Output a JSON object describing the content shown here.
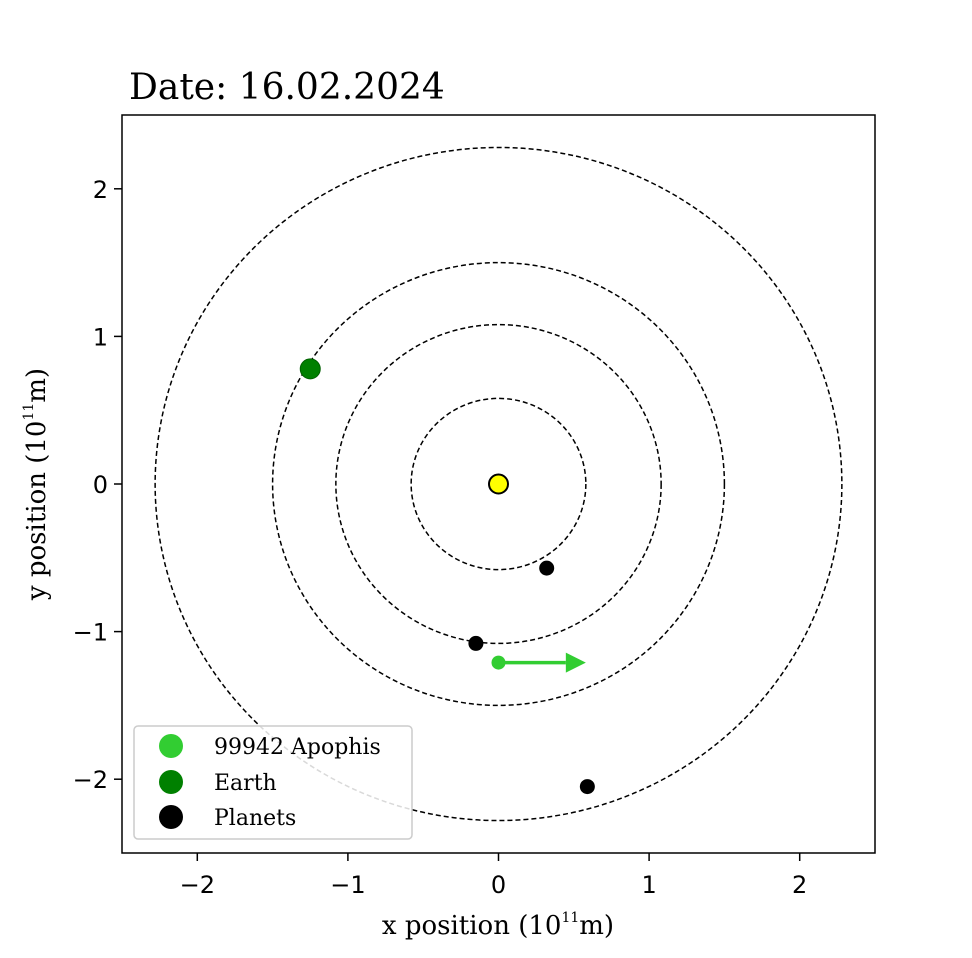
{
  "chart_data": {
    "type": "scatter",
    "title": "Date: 16.02.2024",
    "xlabel": {
      "prefix": "x position (10",
      "exponent": "11",
      "suffix": "m)"
    },
    "ylabel": {
      "prefix": "y position (10",
      "exponent": "11",
      "suffix": "m)"
    },
    "xlim": [
      -2.5,
      2.5
    ],
    "ylim": [
      -2.5,
      2.5
    ],
    "xticks": [
      -2,
      -1,
      0,
      1,
      2
    ],
    "yticks": [
      -2,
      -1,
      0,
      1,
      2
    ],
    "xtick_labels": [
      "−2",
      "−1",
      "0",
      "1",
      "2"
    ],
    "ytick_labels": [
      "−2",
      "−1",
      "0",
      "1",
      "2"
    ],
    "grid": false,
    "orbits": [
      {
        "radius": 0.58
      },
      {
        "radius": 1.08
      },
      {
        "radius": 1.5
      },
      {
        "radius": 2.28
      }
    ],
    "sun": {
      "x": 0,
      "y": 0,
      "color": "#ffff00"
    },
    "points": [
      {
        "series": "Earth",
        "x": -1.25,
        "y": 0.78,
        "color": "#008000"
      },
      {
        "series": "99942 Apophis",
        "x": 0.0,
        "y": -1.21,
        "color": "#32cd32"
      },
      {
        "series": "Planets",
        "x": 0.32,
        "y": -0.57,
        "color": "#000000"
      },
      {
        "series": "Planets",
        "x": -0.15,
        "y": -1.08,
        "color": "#000000"
      },
      {
        "series": "Planets",
        "x": 0.59,
        "y": -2.05,
        "color": "#000000"
      }
    ],
    "velocity_arrow": {
      "x": 0.0,
      "y": -1.21,
      "dx": 0.58,
      "dy": 0.0,
      "color": "#32cd32"
    },
    "legend": {
      "placement": "lower-left",
      "entries": [
        {
          "label": "99942 Apophis",
          "color": "#32cd32"
        },
        {
          "label": "Earth",
          "color": "#008000"
        },
        {
          "label": "Planets",
          "color": "#000000"
        }
      ]
    }
  }
}
